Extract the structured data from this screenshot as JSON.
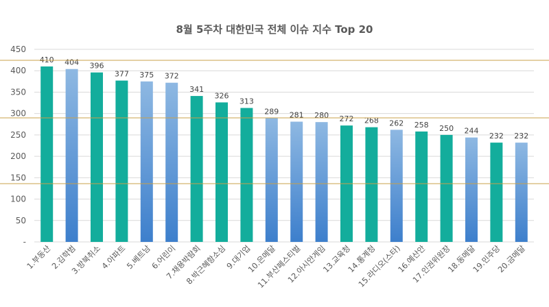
{
  "chart_data": {
    "type": "bar",
    "title": "8월 5주차 대한민국 전체 이슈 지수 Top 20",
    "xlabel": "",
    "ylabel": "",
    "ylim": [
      0,
      450
    ],
    "yticks": [
      450,
      400,
      350,
      300,
      250,
      200,
      150,
      100,
      50,
      0
    ],
    "ytick_labels": [
      "450",
      "400",
      "350",
      "300",
      "250",
      "200",
      "150",
      "100",
      "50",
      "-"
    ],
    "grid": true,
    "legend": "none",
    "categories": [
      "1.부동산",
      "2.김학범",
      "3.방북취소",
      "4.아파트",
      "5.베트남",
      "6.어린이",
      "7.채용박람회",
      "8.박근혜항소심",
      "9.대기업",
      "10.은메달",
      "11.부산페스티벌",
      "12.아시안게임",
      "13.교육청",
      "14.통계청",
      "15.라디오(스타)",
      "16.예산안",
      "17.인권위원장",
      "18.동메달",
      "19.민주당",
      "20.금메달"
    ],
    "values": [
      410,
      404,
      396,
      377,
      375,
      372,
      341,
      326,
      313,
      289,
      281,
      280,
      272,
      268,
      262,
      258,
      250,
      244,
      232,
      232
    ],
    "bar_color_groups": [
      "teal",
      "blue",
      "teal",
      "teal",
      "blue",
      "blue",
      "teal",
      "teal",
      "teal",
      "blue",
      "blue",
      "blue",
      "teal",
      "teal",
      "blue",
      "teal",
      "teal",
      "blue",
      "teal",
      "blue"
    ],
    "colors": {
      "teal": "#13ad9c",
      "blue_top": "#8eb8e2",
      "blue_bottom": "#3d7fcc",
      "grid": "#d9d9d9",
      "reference_line": "#c9a04a",
      "text": "#595959"
    }
  }
}
